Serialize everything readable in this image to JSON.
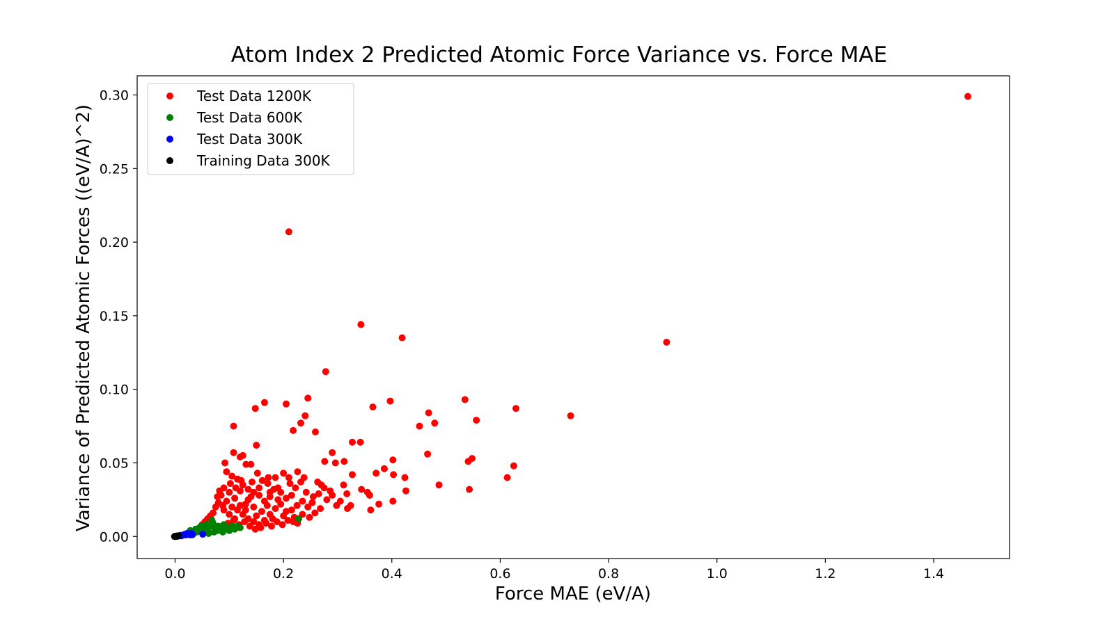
{
  "chart_data": {
    "type": "scatter",
    "title": "Atom Index 2 Predicted Atomic Force Variance vs. Force MAE",
    "xlabel": "Force MAE (eV/A)",
    "ylabel": "Variance of Predicted Atomic Forces ((eV/A)^2)",
    "xlim": [
      -0.07,
      1.54
    ],
    "ylim": [
      -0.015,
      0.313
    ],
    "xticks": [
      0.0,
      0.2,
      0.4,
      0.6,
      0.8,
      1.0,
      1.2,
      1.4
    ],
    "xtick_labels": [
      "0.0",
      "0.2",
      "0.4",
      "0.6",
      "0.8",
      "1.0",
      "1.2",
      "1.4"
    ],
    "yticks": [
      0.0,
      0.05,
      0.1,
      0.15,
      0.2,
      0.25,
      0.3
    ],
    "ytick_labels": [
      "0.00",
      "0.05",
      "0.10",
      "0.15",
      "0.20",
      "0.25",
      "0.30"
    ],
    "grid": false,
    "legend_position": "top-left",
    "series": [
      {
        "name": "Test Data 1200K",
        "color": "#ff0000",
        "points": [
          [
            1.463,
            0.299
          ],
          [
            0.21,
            0.207
          ],
          [
            0.343,
            0.144
          ],
          [
            0.419,
            0.135
          ],
          [
            0.907,
            0.132
          ],
          [
            0.278,
            0.112
          ],
          [
            0.108,
            0.075
          ],
          [
            0.148,
            0.087
          ],
          [
            0.165,
            0.091
          ],
          [
            0.205,
            0.09
          ],
          [
            0.245,
            0.094
          ],
          [
            0.24,
            0.082
          ],
          [
            0.232,
            0.077
          ],
          [
            0.218,
            0.072
          ],
          [
            0.259,
            0.071
          ],
          [
            0.365,
            0.088
          ],
          [
            0.397,
            0.092
          ],
          [
            0.535,
            0.093
          ],
          [
            0.468,
            0.084
          ],
          [
            0.479,
            0.077
          ],
          [
            0.451,
            0.075
          ],
          [
            0.629,
            0.087
          ],
          [
            0.73,
            0.082
          ],
          [
            0.556,
            0.079
          ],
          [
            0.15,
            0.062
          ],
          [
            0.108,
            0.057
          ],
          [
            0.125,
            0.055
          ],
          [
            0.12,
            0.054
          ],
          [
            0.092,
            0.05
          ],
          [
            0.131,
            0.049
          ],
          [
            0.14,
            0.049
          ],
          [
            0.327,
            0.064
          ],
          [
            0.342,
            0.064
          ],
          [
            0.29,
            0.057
          ],
          [
            0.466,
            0.056
          ],
          [
            0.402,
            0.052
          ],
          [
            0.548,
            0.053
          ],
          [
            0.541,
            0.051
          ],
          [
            0.625,
            0.048
          ],
          [
            0.613,
            0.04
          ],
          [
            0.487,
            0.035
          ],
          [
            0.543,
            0.032
          ],
          [
            0.426,
            0.031
          ],
          [
            0.402,
            0.024
          ],
          [
            0.376,
            0.022
          ],
          [
            0.359,
            0.028
          ],
          [
            0.344,
            0.032
          ],
          [
            0.311,
            0.035
          ],
          [
            0.317,
            0.029
          ],
          [
            0.327,
            0.042
          ],
          [
            0.371,
            0.043
          ],
          [
            0.386,
            0.046
          ],
          [
            0.403,
            0.042
          ],
          [
            0.424,
            0.04
          ],
          [
            0.355,
            0.03
          ],
          [
            0.361,
            0.018
          ],
          [
            0.296,
            0.05
          ],
          [
            0.312,
            0.051
          ],
          [
            0.276,
            0.051
          ],
          [
            0.263,
            0.037
          ],
          [
            0.286,
            0.031
          ],
          [
            0.298,
            0.021
          ],
          [
            0.318,
            0.019
          ],
          [
            0.324,
            0.021
          ],
          [
            0.21,
            0.04
          ],
          [
            0.2,
            0.043
          ],
          [
            0.185,
            0.04
          ],
          [
            0.171,
            0.036
          ],
          [
            0.161,
            0.038
          ],
          [
            0.226,
            0.044
          ],
          [
            0.238,
            0.04
          ],
          [
            0.215,
            0.028
          ],
          [
            0.226,
            0.009
          ],
          [
            0.253,
            0.023
          ],
          [
            0.27,
            0.035
          ],
          [
            0.095,
            0.044
          ],
          [
            0.105,
            0.041
          ],
          [
            0.115,
            0.039
          ],
          [
            0.125,
            0.035
          ],
          [
            0.135,
            0.032
          ],
          [
            0.145,
            0.03
          ],
          [
            0.155,
            0.028
          ],
          [
            0.085,
            0.028
          ],
          [
            0.095,
            0.024
          ],
          [
            0.105,
            0.02
          ],
          [
            0.115,
            0.018
          ],
          [
            0.125,
            0.015
          ],
          [
            0.135,
            0.012
          ],
          [
            0.145,
            0.01
          ],
          [
            0.155,
            0.008
          ],
          [
            0.165,
            0.011
          ],
          [
            0.175,
            0.015
          ],
          [
            0.185,
            0.019
          ],
          [
            0.195,
            0.022
          ],
          [
            0.205,
            0.026
          ],
          [
            0.215,
            0.018
          ],
          [
            0.225,
            0.021
          ],
          [
            0.235,
            0.024
          ],
          [
            0.245,
            0.02
          ],
          [
            0.255,
            0.027
          ],
          [
            0.175,
            0.03
          ],
          [
            0.19,
            0.033
          ],
          [
            0.165,
            0.024
          ],
          [
            0.145,
            0.02
          ],
          [
            0.13,
            0.022
          ],
          [
            0.11,
            0.026
          ],
          [
            0.1,
            0.03
          ],
          [
            0.09,
            0.033
          ],
          [
            0.12,
            0.031
          ],
          [
            0.14,
            0.027
          ],
          [
            0.16,
            0.017
          ],
          [
            0.18,
            0.012
          ],
          [
            0.2,
            0.014
          ],
          [
            0.22,
            0.013
          ],
          [
            0.07,
            0.016
          ],
          [
            0.075,
            0.02
          ],
          [
            0.08,
            0.023
          ],
          [
            0.06,
            0.012
          ],
          [
            0.065,
            0.014
          ],
          [
            0.055,
            0.01
          ],
          [
            0.05,
            0.008
          ],
          [
            0.045,
            0.006
          ],
          [
            0.04,
            0.004
          ],
          [
            0.13,
            0.018
          ],
          [
            0.15,
            0.014
          ],
          [
            0.17,
            0.021
          ],
          [
            0.19,
            0.025
          ],
          [
            0.11,
            0.012
          ],
          [
            0.09,
            0.018
          ],
          [
            0.1,
            0.015
          ],
          [
            0.12,
            0.021
          ],
          [
            0.135,
            0.025
          ],
          [
            0.155,
            0.033
          ],
          [
            0.175,
            0.027
          ],
          [
            0.195,
            0.03
          ],
          [
            0.205,
            0.017
          ],
          [
            0.235,
            0.015
          ],
          [
            0.265,
            0.029
          ],
          [
            0.275,
            0.033
          ],
          [
            0.28,
            0.025
          ],
          [
            0.29,
            0.028
          ],
          [
            0.305,
            0.024
          ],
          [
            0.082,
            0.031
          ],
          [
            0.078,
            0.027
          ],
          [
            0.088,
            0.021
          ],
          [
            0.098,
            0.009
          ],
          [
            0.108,
            0.011
          ],
          [
            0.118,
            0.008
          ],
          [
            0.128,
            0.01
          ],
          [
            0.138,
            0.007
          ],
          [
            0.148,
            0.005
          ],
          [
            0.158,
            0.006
          ],
          [
            0.168,
            0.009
          ],
          [
            0.178,
            0.007
          ],
          [
            0.188,
            0.01
          ],
          [
            0.198,
            0.008
          ],
          [
            0.208,
            0.011
          ],
          [
            0.218,
            0.01
          ],
          [
            0.228,
            0.012
          ],
          [
            0.248,
            0.013
          ],
          [
            0.258,
            0.016
          ],
          [
            0.268,
            0.019
          ],
          [
            0.222,
            0.033
          ],
          [
            0.232,
            0.037
          ],
          [
            0.242,
            0.03
          ],
          [
            0.212,
            0.036
          ],
          [
            0.182,
            0.032
          ],
          [
            0.172,
            0.04
          ],
          [
            0.142,
            0.037
          ],
          [
            0.152,
            0.043
          ],
          [
            0.112,
            0.033
          ],
          [
            0.122,
            0.038
          ],
          [
            0.102,
            0.036
          ]
        ]
      },
      {
        "name": "Test Data 600K",
        "color": "#008000",
        "points": [
          [
            0.228,
            0.012
          ],
          [
            0.12,
            0.006
          ],
          [
            0.115,
            0.007
          ],
          [
            0.105,
            0.007
          ],
          [
            0.095,
            0.006
          ],
          [
            0.09,
            0.008
          ],
          [
            0.085,
            0.005
          ],
          [
            0.08,
            0.007
          ],
          [
            0.075,
            0.006
          ],
          [
            0.07,
            0.009
          ],
          [
            0.068,
            0.011
          ],
          [
            0.065,
            0.007
          ],
          [
            0.06,
            0.005
          ],
          [
            0.058,
            0.008
          ],
          [
            0.055,
            0.006
          ],
          [
            0.05,
            0.004
          ],
          [
            0.048,
            0.007
          ],
          [
            0.045,
            0.005
          ],
          [
            0.04,
            0.003
          ],
          [
            0.038,
            0.005
          ],
          [
            0.035,
            0.003
          ],
          [
            0.03,
            0.002
          ],
          [
            0.028,
            0.004
          ],
          [
            0.1,
            0.004
          ],
          [
            0.11,
            0.005
          ],
          [
            0.088,
            0.003
          ],
          [
            0.078,
            0.004
          ],
          [
            0.072,
            0.003
          ],
          [
            0.062,
            0.002
          ],
          [
            0.052,
            0.002
          ]
        ]
      },
      {
        "name": "Test Data 300K",
        "color": "#0000ff",
        "points": [
          [
            0.051,
            0.0015
          ],
          [
            0.03,
            0.002
          ],
          [
            0.025,
            0.0015
          ],
          [
            0.022,
            0.002
          ],
          [
            0.02,
            0.001
          ],
          [
            0.018,
            0.0015
          ],
          [
            0.015,
            0.001
          ],
          [
            0.012,
            0.0005
          ],
          [
            0.028,
            0.001
          ],
          [
            0.032,
            0.0012
          ],
          [
            0.01,
            0.0008
          ],
          [
            0.008,
            0.0005
          ]
        ]
      },
      {
        "name": "Training Data 300K",
        "color": "#000000",
        "points": [
          [
            0.0,
            0.0
          ],
          [
            0.002,
            0.0002
          ],
          [
            0.003,
            0.0001
          ],
          [
            0.004,
            0.0003
          ],
          [
            0.001,
            0.0001
          ],
          [
            0.005,
            0.0002
          ],
          [
            0.006,
            0.0004
          ],
          [
            -0.001,
            0.0
          ]
        ]
      }
    ]
  }
}
